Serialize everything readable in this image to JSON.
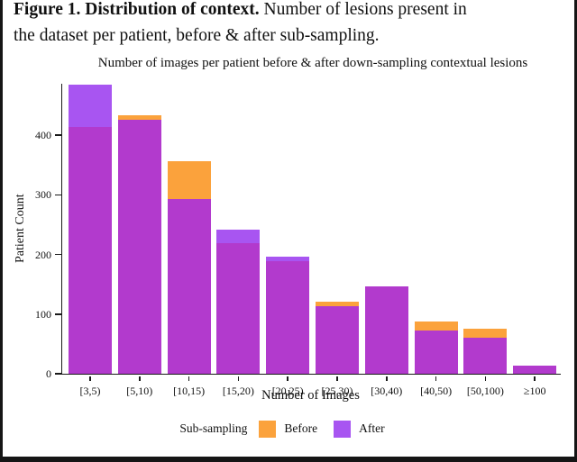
{
  "caption": {
    "line1_bold": "Figure 1. Distribution of context.",
    "line1_rest": " Number of lesions present in",
    "line2": "the dataset per patient, before & after sub-sampling."
  },
  "chart_data": {
    "type": "bar",
    "title": "Number of images per patient before & after down-sampling contextual lesions",
    "xlabel": "Number of Images",
    "ylabel": "Patient Count",
    "categories": [
      "[3,5)",
      "[5,10)",
      "[10,15)",
      "[15,20)",
      "[20,25)",
      "[25,30)",
      "[30,40)",
      "[40,50)",
      "[50,100)",
      "≥100"
    ],
    "series": [
      {
        "name": "Before",
        "values": [
          413,
          433,
          357,
          219,
          189,
          121,
          147,
          87,
          75,
          13
        ]
      },
      {
        "name": "After",
        "values": [
          485,
          426,
          293,
          241,
          197,
          113,
          147,
          72,
          61,
          13
        ]
      }
    ],
    "yticks": [
      0,
      100,
      200,
      300,
      400
    ],
    "ylim": [
      0,
      486
    ],
    "grid": false,
    "legend_title": "Sub-sampling",
    "legend_position": "bottom",
    "colors": {
      "before": "#FBA23C",
      "after": "#A855F1",
      "overlap": "#B23ACD",
      "axis": "#1a1a1a"
    }
  }
}
